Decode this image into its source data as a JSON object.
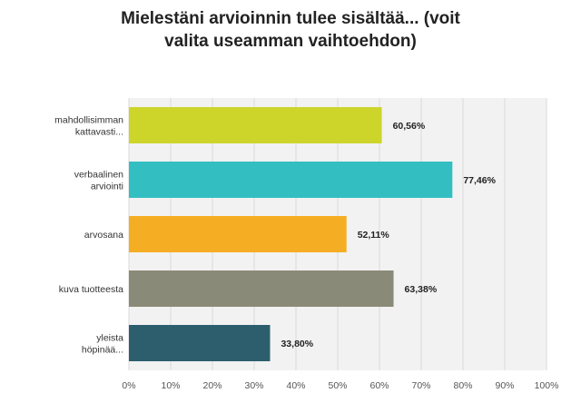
{
  "chart_data": {
    "type": "bar",
    "orientation": "horizontal",
    "title_lines": [
      "Mielestäni arvioinnin tulee sisältää... (voit",
      "valita useamman vaihtoehdon)"
    ],
    "categories": [
      [
        "mahdollisimman",
        "kattavasti..."
      ],
      [
        "verbaalinen",
        "arviointi"
      ],
      [
        "arvosana"
      ],
      [
        "kuva tuotteesta"
      ],
      [
        "yleista",
        "höpinää..."
      ]
    ],
    "values": [
      60.56,
      77.46,
      52.11,
      63.38,
      33.8
    ],
    "value_labels": [
      "60,56%",
      "77,46%",
      "52,11%",
      "63,38%",
      "33,80%"
    ],
    "colors": [
      "#cdd52b",
      "#33bfc2",
      "#f5ae23",
      "#8a8a78",
      "#2c5e6e"
    ],
    "xlim": [
      0,
      100
    ],
    "x_ticks": [
      "0%",
      "10%",
      "20%",
      "30%",
      "40%",
      "50%",
      "60%",
      "70%",
      "80%",
      "90%",
      "100%"
    ],
    "grid": true,
    "legend": "none"
  }
}
